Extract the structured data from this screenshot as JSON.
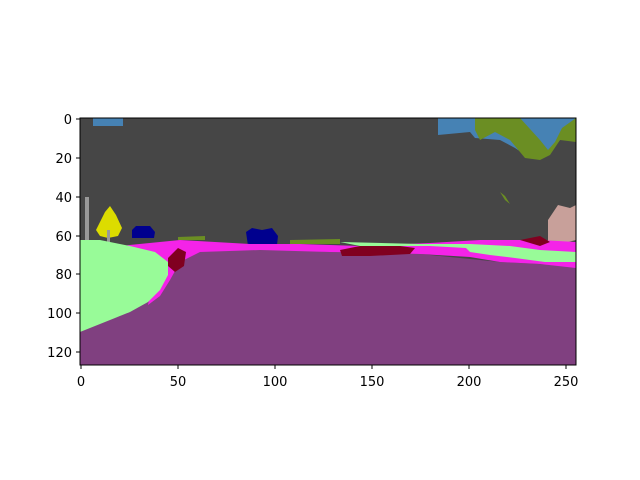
{
  "image": {
    "description_type": "semantic segmentation map of a road scene",
    "x_ticks": [
      "0",
      "50",
      "100",
      "150",
      "200",
      "250"
    ],
    "y_ticks": [
      "0",
      "20",
      "40",
      "60",
      "80",
      "100",
      "120"
    ],
    "x_range": [
      0,
      256
    ],
    "y_range": [
      0,
      128
    ],
    "palette": {
      "building": "#464646",
      "sky": "#4682b4",
      "vegetation": "#6b8e23",
      "terrain": "#98fb98",
      "road": "#804080",
      "sidewalk": "#f423e8",
      "car": "#00008e",
      "traffic_sign": "#dcdc00",
      "pole": "#999999",
      "other_red": "#800020",
      "wall": "#c8a09a"
    }
  }
}
